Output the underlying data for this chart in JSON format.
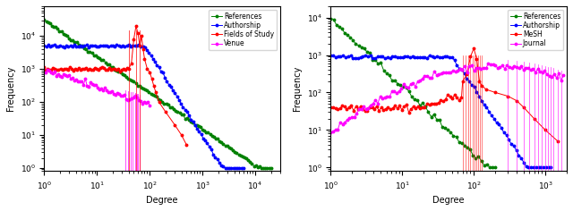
{
  "plot1": {
    "xlabel": "Degree",
    "ylabel": "Frequency",
    "xlim": [
      1,
      30000
    ],
    "ylim": [
      0.8,
      80000
    ],
    "legend": [
      "References",
      "Authorship",
      "Fields of Study",
      "Venue"
    ],
    "colors": [
      "#008000",
      "#0000ff",
      "#ff0000",
      "#ff00ff"
    ]
  },
  "plot2": {
    "xlabel": "Degree",
    "ylabel": "Frequency",
    "xlim": [
      1,
      2000
    ],
    "ylim": [
      0.8,
      20000
    ],
    "legend": [
      "References",
      "Authorship",
      "MeSH",
      "Journal"
    ],
    "colors": [
      "#008000",
      "#0000ff",
      "#ff0000",
      "#ff00ff"
    ]
  }
}
